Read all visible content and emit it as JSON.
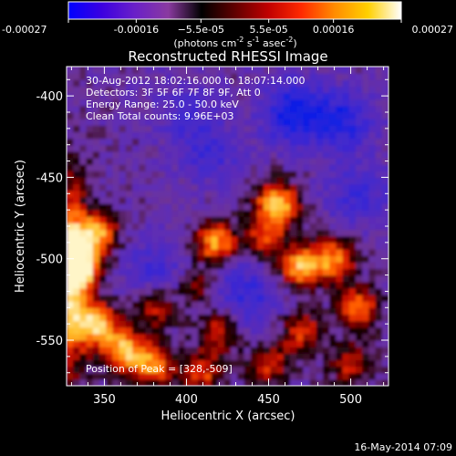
{
  "chart_data": {
    "type": "heatmap",
    "title": "Reconstructed RHESSI Image",
    "xlabel": "Heliocentric X (arcsec)",
    "ylabel": "Heliocentric Y (arcsec)",
    "xlim": [
      327,
      523
    ],
    "ylim": [
      -578,
      -382
    ],
    "x_ticks": [
      350,
      400,
      450,
      500
    ],
    "y_ticks": [
      -400,
      -450,
      -500,
      -550
    ],
    "colorbar": {
      "range": [
        -0.00027,
        0.00027
      ],
      "ticks": [
        -0.00027,
        -0.00016,
        -5.5e-05,
        5.5e-05,
        0.00016,
        0.00027
      ],
      "tick_labels": [
        "-0.00027",
        "-0.00016",
        "−5.5e-05",
        "5.5e-05",
        "0.00016",
        "0.00027"
      ],
      "units": "(photons cm",
      "units_sup1": "-2",
      "units_mid": " s",
      "units_sup2": "-1",
      "units_end": " asec",
      "units_sup3": "-2",
      "units_close": ")",
      "colors": [
        "#0000ff",
        "#3b00e0",
        "#6a20c8",
        "#8a3aa0",
        "#000000",
        "#600000",
        "#c00000",
        "#ff2a00",
        "#ff8c00",
        "#ffd000",
        "#ffffff"
      ]
    },
    "annotations": {
      "time": "30-Aug-2012 18:02:16.000 to 18:07:14.000",
      "detectors": "Detectors: 3F 5F 6F 7F 8F 9F, Att 0",
      "energy": "Energy Range: 25.0 - 50.0 keV",
      "clean": "Clean     Total counts: 9.96E+03",
      "peak": "Position of Peak = [328,-509]"
    },
    "peak": [
      328,
      -509
    ],
    "sources": [
      {
        "x": 333,
        "y": -505,
        "intensity": 1.0
      },
      {
        "x": 345,
        "y": -485,
        "intensity": 0.7
      },
      {
        "x": 345,
        "y": -540,
        "intensity": 0.75
      },
      {
        "x": 362,
        "y": -556,
        "intensity": 0.7
      },
      {
        "x": 380,
        "y": -565,
        "intensity": 0.6
      },
      {
        "x": 418,
        "y": -491,
        "intensity": 0.8
      },
      {
        "x": 408,
        "y": -515,
        "intensity": 0.35
      },
      {
        "x": 455,
        "y": -466,
        "intensity": 0.8
      },
      {
        "x": 448,
        "y": -487,
        "intensity": 0.45
      },
      {
        "x": 470,
        "y": -505,
        "intensity": 0.7
      },
      {
        "x": 490,
        "y": -500,
        "intensity": 0.6
      },
      {
        "x": 505,
        "y": -530,
        "intensity": 0.55
      },
      {
        "x": 470,
        "y": -545,
        "intensity": 0.45
      },
      {
        "x": 420,
        "y": -545,
        "intensity": 0.4
      },
      {
        "x": 410,
        "y": -570,
        "intensity": 0.45
      },
      {
        "x": 450,
        "y": -565,
        "intensity": 0.4
      },
      {
        "x": 380,
        "y": -530,
        "intensity": 0.35
      },
      {
        "x": 500,
        "y": -565,
        "intensity": 0.4
      }
    ],
    "negative_regions": [
      {
        "x": 465,
        "y": -410,
        "intensity": 1.0
      },
      {
        "x": 495,
        "y": -415,
        "intensity": 0.8
      },
      {
        "x": 505,
        "y": -460,
        "intensity": 0.6
      },
      {
        "x": 415,
        "y": -435,
        "intensity": 0.5
      },
      {
        "x": 420,
        "y": -505,
        "intensity": 0.5
      },
      {
        "x": 440,
        "y": -525,
        "intensity": 0.55
      },
      {
        "x": 380,
        "y": -505,
        "intensity": 0.5
      },
      {
        "x": 400,
        "y": -410,
        "intensity": 0.45
      }
    ]
  },
  "footer": {
    "date": "16-May-2014 07:09"
  }
}
